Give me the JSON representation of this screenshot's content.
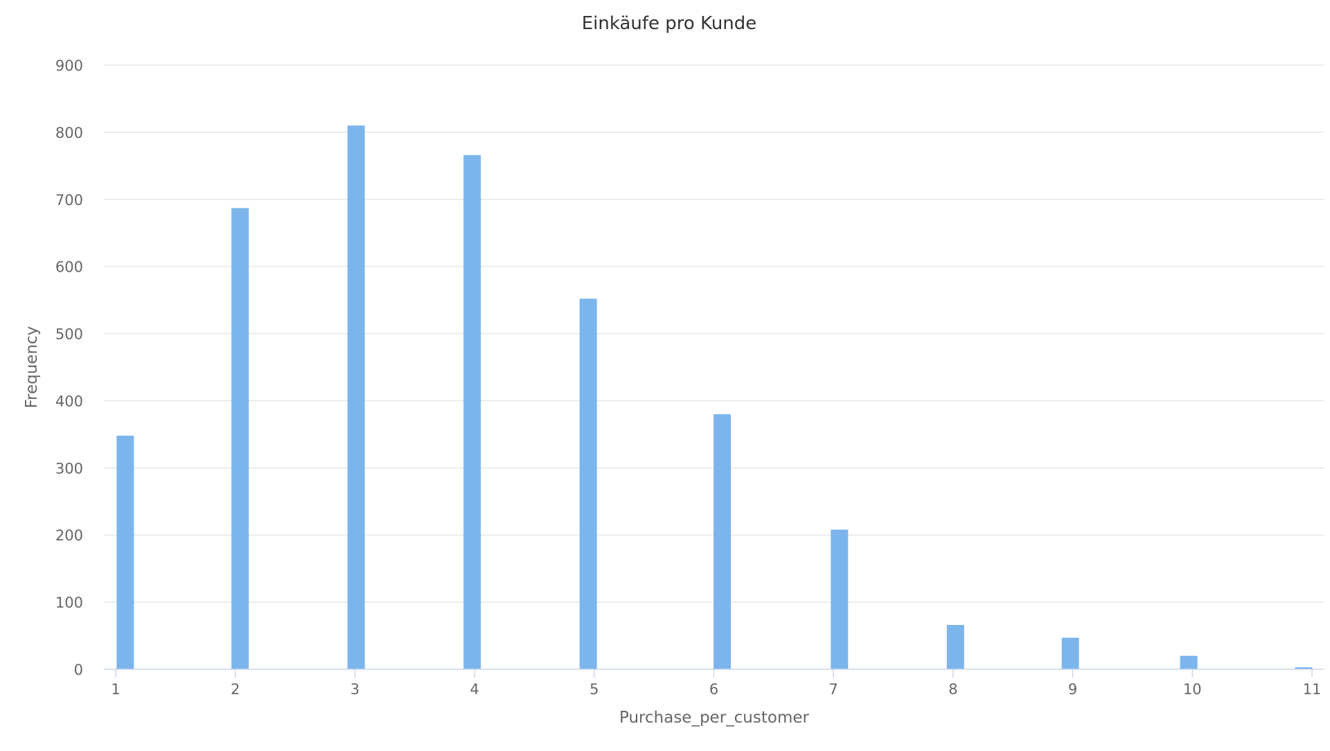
{
  "chart_data": {
    "type": "bar",
    "title": "Einkäufe pro Kunde",
    "xlabel": "Purchase_per_customer",
    "ylabel": "Frequency",
    "x_ticks": [
      "1",
      "2",
      "3",
      "4",
      "5",
      "6",
      "7",
      "8",
      "9",
      "10",
      "11"
    ],
    "y_ticks": [
      "0",
      "100",
      "200",
      "300",
      "400",
      "500",
      "600",
      "700",
      "800",
      "900"
    ],
    "xlim": [
      1,
      11
    ],
    "ylim": [
      0,
      900
    ],
    "grid": true,
    "legend": "none",
    "bar_color": "#7cb5ec",
    "series": [
      {
        "x": [
          1.08,
          2.04,
          3.01,
          3.98,
          4.95,
          6.07,
          7.05,
          8.02,
          8.98,
          9.97,
          10.93
        ],
        "values": [
          348,
          687,
          810,
          766,
          552,
          380,
          208,
          66,
          47,
          20,
          3
        ]
      }
    ]
  }
}
